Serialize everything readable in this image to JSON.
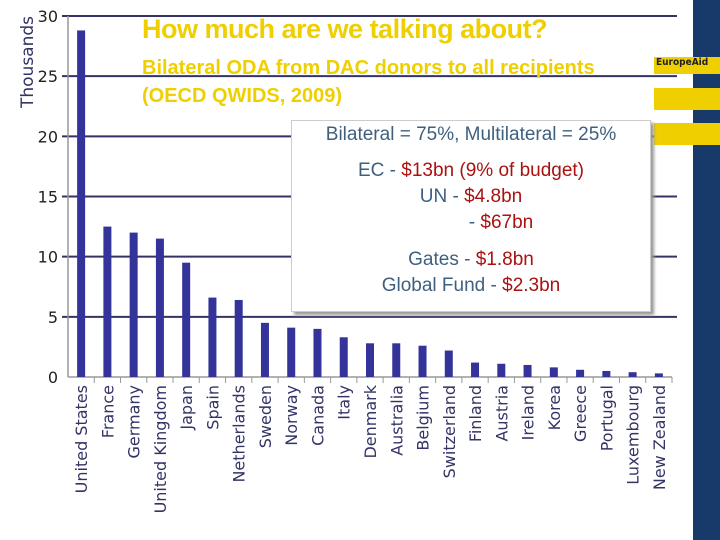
{
  "title": "How much are we talking about?",
  "subtitle_line1": "Bilateral ODA from DAC donors to all recipients",
  "subtitle_line2": "(OECD QWIDS, 2009)",
  "brand": "EuropeAid",
  "colors": {
    "bar": "#333399",
    "title": "#f0cf00",
    "band": "#173a6b",
    "accent_red": "#aa1111",
    "text_blue": "#3f5f7f"
  },
  "annotation": {
    "line1": "Bilateral = 75%, Multilateral = 25%",
    "ec_label": "EC - ",
    "ec_value": "$13bn (9% of budget)",
    "un_label": "UN - ",
    "un_value": "$4.8bn",
    "blank_label": "- ",
    "blank_value": "$67bn",
    "gates_label": "Gates - ",
    "gates_value": "$1.8bn",
    "gf_label": "Global Fund - ",
    "gf_value": "$2.3bn"
  },
  "chart_data": {
    "type": "bar",
    "ylabel": "Thousands",
    "ylim": [
      0,
      30
    ],
    "yticks": [
      0,
      5,
      10,
      15,
      20,
      25,
      30
    ],
    "grid": true,
    "categories": [
      "United States",
      "France",
      "Germany",
      "United Kingdom",
      "Japan",
      "Spain",
      "Netherlands",
      "Sweden",
      "Norway",
      "Canada",
      "Italy",
      "Denmark",
      "Australia",
      "Belgium",
      "Switzerland",
      "Finland",
      "Austria",
      "Ireland",
      "Korea",
      "Greece",
      "Portugal",
      "Luxembourg",
      "New Zealand"
    ],
    "values": [
      28.8,
      12.5,
      12.0,
      11.5,
      9.5,
      6.6,
      6.4,
      4.5,
      4.1,
      4.0,
      3.3,
      2.8,
      2.8,
      2.6,
      2.2,
      1.2,
      1.1,
      1.0,
      0.8,
      0.6,
      0.5,
      0.4,
      0.3
    ]
  }
}
